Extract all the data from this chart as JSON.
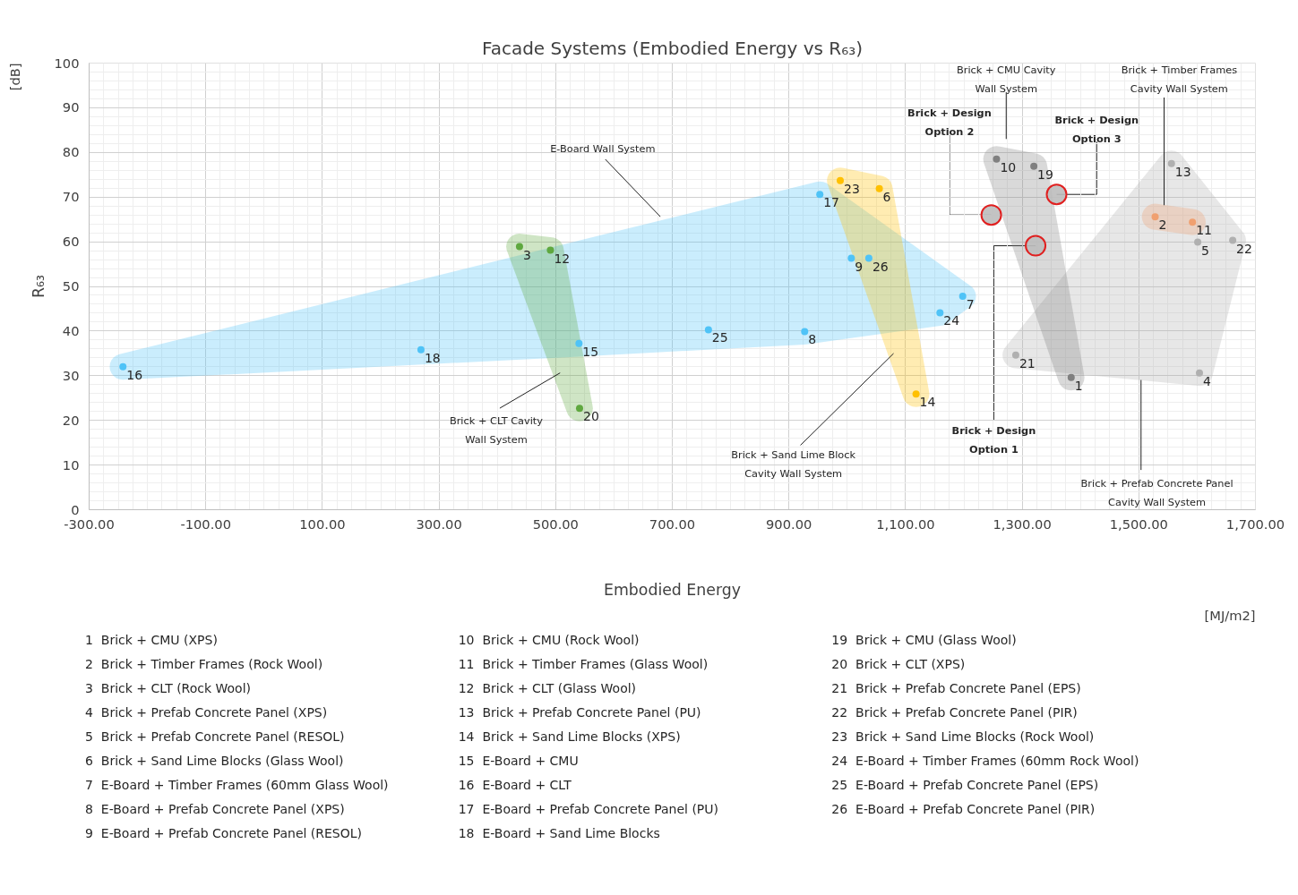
{
  "chart_data": {
    "type": "scatter",
    "title": "Facade Systems (Embodied Energy vs R₆₃)",
    "xlabel": "Embodied Energy",
    "ylabel": "R₆₃",
    "xlim": [
      -300,
      1700
    ],
    "xticks": [
      {
        "value": -300,
        "label": "-300.00"
      },
      {
        "value": -100,
        "label": "-100.00"
      },
      {
        "value": 100,
        "label": "100.00"
      },
      {
        "value": 300,
        "label": "300.00"
      },
      {
        "value": 500,
        "label": "500.00"
      },
      {
        "value": 700,
        "label": "700.00"
      },
      {
        "value": 900,
        "label": "900.00"
      },
      {
        "value": 1100,
        "label": "1,100.00"
      },
      {
        "value": 1300,
        "label": "1,300.00"
      },
      {
        "value": 1500,
        "label": "1,500.00"
      },
      {
        "value": 1700,
        "label": "1,700.00"
      }
    ],
    "ylim": [
      0,
      100
    ],
    "yticks": [
      0,
      10,
      20,
      30,
      40,
      50,
      60,
      70,
      80,
      90,
      100
    ],
    "grid": true,
    "marker": "circle",
    "series": [
      {
        "color": "#4fc3f7",
        "x": [
          1198,
          927,
          1007,
          540,
          -242,
          953,
          269,
          1159,
          762,
          1037
        ],
        "values": [
          47.8,
          39.9,
          56.3,
          37.2,
          32.0,
          70.6,
          35.8,
          44.1,
          40.3,
          56.3
        ]
      },
      {
        "color": "#5fa83f",
        "x": [
          438,
          491,
          541
        ],
        "values": [
          58.9,
          58.1,
          22.7
        ]
      },
      {
        "color": "#ffc000",
        "x": [
          1055,
          1118,
          988
        ],
        "values": [
          71.9,
          25.9,
          73.7
        ]
      },
      {
        "color": "#b0b0b0",
        "x": [
          1604,
          1601,
          1556,
          1289,
          1661
        ],
        "values": [
          30.6,
          59.9,
          77.5,
          34.6,
          60.3
        ]
      },
      {
        "color": "#808080",
        "x": [
          1384,
          1256,
          1320
        ],
        "values": [
          29.6,
          78.5,
          76.9
        ]
      },
      {
        "color": "#f0a070",
        "x": [
          1528,
          1592
        ],
        "values": [
          65.6,
          64.4
        ]
      },
      {
        "type": "bubble",
        "color": "#e02020",
        "x": [
          1323,
          1247,
          1359
        ],
        "values": [
          59.1,
          66.0,
          70.6
        ],
        "sizes": [
          1,
          1,
          1
        ]
      }
    ],
    "annotations": [
      "[dB]",
      "[MJ/m2]",
      "E-Board Wall System",
      "Brick + CLT Cavity\nWall System",
      "Brick + Sand Lime Block\nCavity Wall System",
      "Brick + CMU Cavity\nWall System",
      "Brick + Timber Frames\nCavity Wall System",
      "Brick + Prefab Concrete Panel\nCavity Wall System",
      {
        "text": "Brick + Design\nOption 2",
        "x": 1247,
        "y": 66.0
      },
      {
        "text": "Brick + Design\nOption 3",
        "x": 1359,
        "y": 70.6
      },
      {
        "text": "Brick + Design\nOption 1",
        "x": 1323,
        "y": 59.1
      },
      "1  Brick + CMU (XPS)",
      "2  Brick + Timber Frames (Rock Wool)",
      "3  Brick + CLT (Rock Wool)",
      "4  Brick + Prefab Concrete Panel (XPS)",
      "5  Brick + Prefab Concrete Panel (RESOL)",
      "6  Brick + Sand Lime Blocks (Glass Wool)",
      "7  E-Board + Timber Frames (60mm Glass Wool)",
      "8  E-Board + Prefab Concrete Panel (XPS)",
      "9  E-Board + Prefab Concrete Panel (RESOL)",
      "10  Brick + CMU (Rock Wool)",
      "11  Brick + Timber Frames (Glass Wool)",
      "12  Brick + CLT (Glass Wool)",
      "13  Brick + Prefab Concrete Panel (PU)",
      "14  Brick + Sand Lime Blocks (XPS)",
      "15  E-Board + CMU",
      "16  E-Board + CLT",
      "17  E-Board + Prefab Concrete Panel (PU)",
      "18  E-Board + Sand Lime Blocks",
      "19  Brick + CMU (Glass Wool)",
      "20  Brick + CLT (XPS)",
      "21  Brick + Prefab Concrete Panel (EPS)",
      "22  Brick + Prefab Concrete Panel (PIR)",
      "23  Brick + Sand Lime Blocks (Rock Wool)",
      "24  E-Board + Timber Frames (60mm Rock Wool)",
      "25  E-Board + Prefab Concrete Panel (EPS)",
      "26  E-Board + Prefab Concrete Panel (PIR)",
      {
        "text": "1",
        "x": 1384,
        "y": 29.6
      },
      {
        "text": "2",
        "x": 1528,
        "y": 65.6
      },
      {
        "text": "3",
        "x": 438,
        "y": 58.9
      },
      {
        "text": "4",
        "x": 1604,
        "y": 30.6
      },
      {
        "text": "5",
        "x": 1601,
        "y": 59.9
      },
      {
        "text": "6",
        "x": 1055,
        "y": 71.9
      },
      {
        "text": "7",
        "x": 1198,
        "y": 47.8
      },
      {
        "text": "8",
        "x": 927,
        "y": 39.9
      },
      {
        "text": "9",
        "x": 1007,
        "y": 56.3
      },
      {
        "text": "10",
        "x": 1256,
        "y": 78.5
      },
      {
        "text": "11",
        "x": 1592,
        "y": 64.4
      },
      {
        "text": "12",
        "x": 491,
        "y": 58.1
      },
      {
        "text": "13",
        "x": 1556,
        "y": 77.5
      },
      {
        "text": "14",
        "x": 1118,
        "y": 25.9
      },
      {
        "text": "15",
        "x": 540,
        "y": 37.2
      },
      {
        "text": "16",
        "x": -242,
        "y": 32.0
      },
      {
        "text": "17",
        "x": 953,
        "y": 70.6
      },
      {
        "text": "18",
        "x": 269,
        "y": 35.8
      },
      {
        "text": "19",
        "x": 1320,
        "y": 76.9
      },
      {
        "text": "20",
        "x": 541,
        "y": 22.7
      },
      {
        "text": "21",
        "x": 1289,
        "y": 34.6
      },
      {
        "text": "22",
        "x": 1661,
        "y": 60.3
      },
      {
        "text": "23",
        "x": 988,
        "y": 73.7
      },
      {
        "text": "24",
        "x": 1159,
        "y": 44.1
      },
      {
        "text": "25",
        "x": 762,
        "y": 40.3
      },
      {
        "text": "26",
        "x": 1037,
        "y": 56.3
      }
    ]
  }
}
